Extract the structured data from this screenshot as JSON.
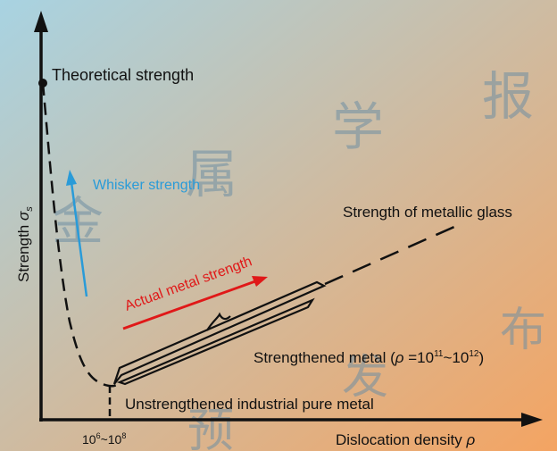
{
  "colors": {
    "bg_start": "#a8d3e2",
    "bg_end": "#f4a462",
    "axis": "#111111",
    "whisker": "#2a9bd8",
    "actual": "#e01818",
    "watermark": "#6f8fa3"
  },
  "labels": {
    "theoretical": "Theoretical strength",
    "whisker": "Whisker strength",
    "glass": "Strength of metallic glass",
    "actual": "Actual metal strength",
    "strengthened_a": "Strengthened metal (",
    "rho": "ρ",
    "strengthened_b": " =10",
    "exp1": "11",
    "tilde": "~10",
    "exp2": "12",
    "close": ")",
    "unstrengthened": "Unstrengthened industrial pure metal",
    "x_tick_a": "10",
    "x_tick_exp1": "6",
    "x_tick_b": "~10",
    "x_tick_exp2": "8",
    "x_axis": "Dislocation density ",
    "x_axis_sym": "ρ",
    "y_axis": "Strength ",
    "y_axis_sym": "σ",
    "y_axis_sub": "s"
  },
  "watermark": [
    "金",
    "属",
    "学",
    "报",
    "发",
    "布",
    "预"
  ]
}
